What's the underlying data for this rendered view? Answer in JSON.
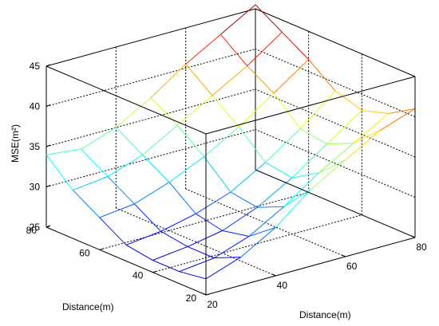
{
  "chart_data": {
    "type": "surface",
    "title": "",
    "xlabel": "Distance(m)",
    "ylabel": "Distance(m)",
    "zlabel": "MSE(m²)",
    "x": [
      20,
      30,
      40,
      50,
      60,
      70,
      80
    ],
    "y": [
      20,
      30,
      40,
      50,
      60,
      70,
      80
    ],
    "z": [
      [
        27.0,
        28.5,
        31.0,
        34.5,
        37.0,
        39.5,
        41.0
      ],
      [
        26.5,
        27.0,
        28.5,
        31.0,
        34.0,
        36.5,
        39.0
      ],
      [
        26.5,
        27.0,
        27.8,
        29.5,
        32.0,
        35.0,
        38.0
      ],
      [
        27.0,
        27.5,
        28.5,
        30.0,
        32.5,
        35.5,
        39.0
      ],
      [
        29.0,
        29.5,
        31.0,
        33.0,
        35.5,
        38.5,
        41.5
      ],
      [
        31.0,
        31.5,
        33.0,
        35.5,
        38.0,
        40.5,
        43.5
      ],
      [
        34.0,
        33.5,
        35.0,
        37.5,
        40.5,
        43.0,
        45.5
      ]
    ],
    "xlim": [
      20,
      80
    ],
    "ylim": [
      20,
      80
    ],
    "zlim": [
      25,
      45
    ],
    "xticks": [
      "20",
      "40",
      "60",
      "80"
    ],
    "yticks": [
      "20",
      "40",
      "60",
      "80"
    ],
    "zticks": [
      "25",
      "30",
      "35",
      "40",
      "45"
    ],
    "colormap": "jet",
    "grid": true,
    "box": true
  }
}
